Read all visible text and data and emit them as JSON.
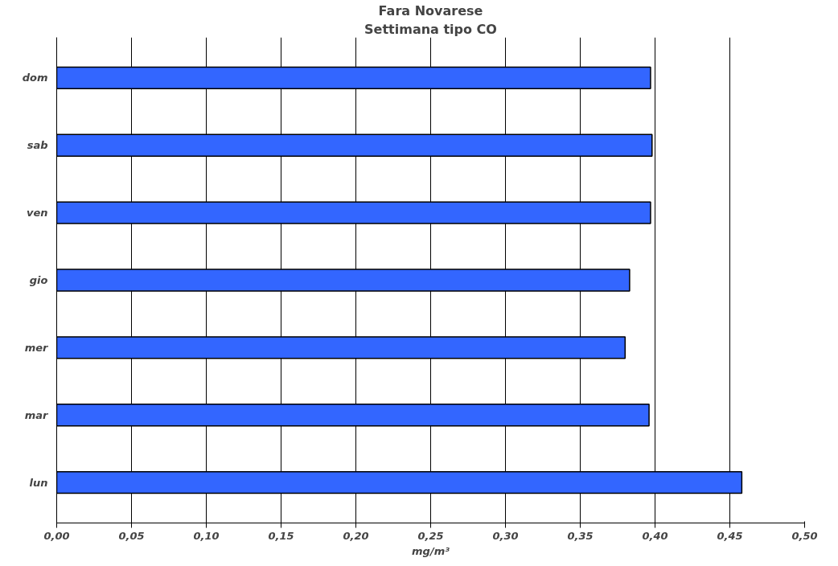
{
  "chart_data": {
    "type": "bar",
    "orientation": "horizontal",
    "title": "Fara Novarese",
    "subtitle": "Settimana tipo CO",
    "xlabel": "mg/m³",
    "categories": [
      "dom",
      "sab",
      "ven",
      "gio",
      "mer",
      "mar",
      "lun"
    ],
    "values": [
      0.397,
      0.398,
      0.397,
      0.383,
      0.38,
      0.396,
      0.458
    ],
    "color": "#3366ff",
    "xlim": [
      0,
      0.5
    ],
    "xticks": [
      {
        "value": 0,
        "label": "0,00"
      },
      {
        "value": 0.05,
        "label": "0,05"
      },
      {
        "value": 0.1,
        "label": "0,10"
      },
      {
        "value": 0.15,
        "label": "0,15"
      },
      {
        "value": 0.2,
        "label": "0,20"
      },
      {
        "value": 0.25,
        "label": "0,25"
      },
      {
        "value": 0.3,
        "label": "0,30"
      },
      {
        "value": 0.35,
        "label": "0,35"
      },
      {
        "value": 0.4,
        "label": "0,40"
      },
      {
        "value": 0.45,
        "label": "0,45"
      },
      {
        "value": 0.5,
        "label": "0,50"
      }
    ],
    "grid": "x"
  }
}
